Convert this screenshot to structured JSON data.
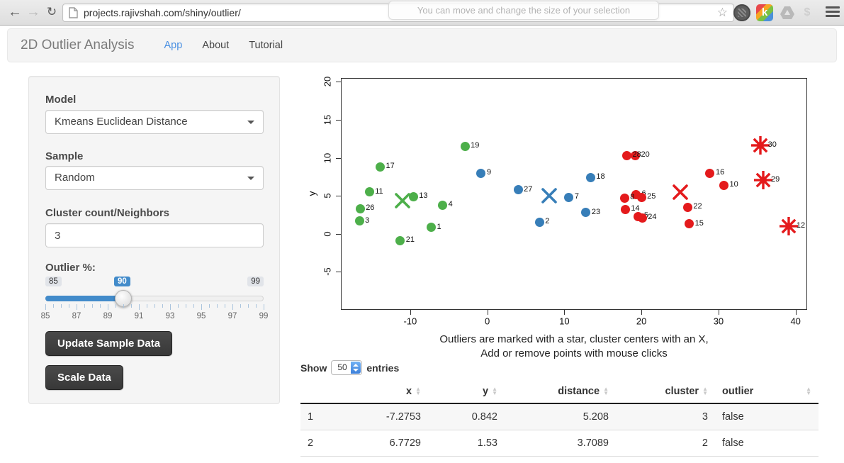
{
  "browser": {
    "url": "projects.rajivshah.com/shiny/outlier/",
    "tooltip": "You can move and change the size of your selection",
    "kami_label": "k",
    "dollar_label": "$"
  },
  "navbar": {
    "title": "2D Outlier Analysis",
    "items": [
      {
        "label": "App",
        "active": true
      },
      {
        "label": "About",
        "active": false
      },
      {
        "label": "Tutorial",
        "active": false
      }
    ]
  },
  "sidebar": {
    "model_label": "Model",
    "model_value": "Kmeans Euclidean Distance",
    "sample_label": "Sample",
    "sample_value": "Random",
    "cluster_label": "Cluster count/Neighbors",
    "cluster_value": "3",
    "slider": {
      "label": "Outlier %:",
      "min": 85,
      "max": 99,
      "value": 90,
      "tick_labels": [
        85,
        87,
        89,
        91,
        93,
        95,
        97,
        99
      ]
    },
    "buttons": [
      "Update Sample Data",
      "Scale Data"
    ]
  },
  "colors": {
    "accent": "#428bca",
    "nav_active": "#4a90e2",
    "green": "#4daf4a",
    "blue": "#377eb8",
    "red": "#e41a1c"
  },
  "chart_data": {
    "type": "scatter",
    "ylabel": "y",
    "xlabel_lines": [
      "Outliers are marked with a star, cluster centers with an X,",
      "Add or remove points with mouse clicks"
    ],
    "xlim": [
      -19,
      41.5
    ],
    "ylim": [
      -10,
      20.5
    ],
    "xticks": [
      -10,
      0,
      10,
      20,
      30,
      40
    ],
    "yticks": [
      -5,
      0,
      5,
      10,
      15,
      20
    ],
    "grid": false,
    "series": [
      {
        "name": "cluster-green",
        "marker": "circle",
        "color": "#4daf4a",
        "points": [
          {
            "id": 1,
            "x": -7.2753,
            "y": 0.842
          },
          {
            "id": 3,
            "x": -16.6,
            "y": 1.7
          },
          {
            "id": 4,
            "x": -5.8,
            "y": 3.8
          },
          {
            "id": 11,
            "x": -15.3,
            "y": 5.5
          },
          {
            "id": 13,
            "x": -9.6,
            "y": 4.9
          },
          {
            "id": 17,
            "x": -13.9,
            "y": 8.8
          },
          {
            "id": 19,
            "x": -2.9,
            "y": 11.5
          },
          {
            "id": 21,
            "x": -11.3,
            "y": -0.9
          },
          {
            "id": 26,
            "x": -16.5,
            "y": 3.3
          }
        ]
      },
      {
        "name": "cluster-blue",
        "marker": "circle",
        "color": "#377eb8",
        "points": [
          {
            "id": 2,
            "x": 6.7729,
            "y": 1.53
          },
          {
            "id": 7,
            "x": 10.6,
            "y": 4.8
          },
          {
            "id": 9,
            "x": -0.8,
            "y": 8.0
          },
          {
            "id": 18,
            "x": 13.4,
            "y": 7.4
          },
          {
            "id": 23,
            "x": 12.8,
            "y": 2.8
          },
          {
            "id": 27,
            "x": 4.0,
            "y": 5.8
          }
        ]
      },
      {
        "name": "cluster-red",
        "marker": "circle",
        "color": "#e41a1c",
        "points": [
          {
            "id": 5,
            "x": 19.6,
            "y": 2.3
          },
          {
            "id": 6,
            "x": 19.3,
            "y": 5.2
          },
          {
            "id": 8,
            "x": 17.8,
            "y": 4.7
          },
          {
            "id": 10,
            "x": 30.7,
            "y": 6.4
          },
          {
            "id": 14,
            "x": 17.9,
            "y": 3.2
          },
          {
            "id": 15,
            "x": 26.2,
            "y": 1.3
          },
          {
            "id": 16,
            "x": 28.9,
            "y": 8.0
          },
          {
            "id": 20,
            "x": 19.2,
            "y": 10.3
          },
          {
            "id": 22,
            "x": 26.0,
            "y": 3.5
          },
          {
            "id": 24,
            "x": 20.1,
            "y": 2.1
          },
          {
            "id": 25,
            "x": 20.0,
            "y": 4.8
          },
          {
            "id": 28,
            "x": 18.1,
            "y": 10.3
          }
        ]
      },
      {
        "name": "outliers-star",
        "marker": "star",
        "color": "#e41a1c",
        "points": [
          {
            "id": 12,
            "x": 39.1,
            "y": 1.0
          },
          {
            "id": 29,
            "x": 35.8,
            "y": 7.1
          },
          {
            "id": 30,
            "x": 35.4,
            "y": 11.6
          }
        ]
      },
      {
        "name": "cluster-centers",
        "marker": "x",
        "points": [
          {
            "x": -11.0,
            "y": 4.35,
            "color": "#4daf4a"
          },
          {
            "x": 8.0,
            "y": 5.0,
            "color": "#377eb8"
          },
          {
            "x": 25.0,
            "y": 5.45,
            "color": "#e41a1c"
          }
        ]
      }
    ]
  },
  "table": {
    "show_label": "Show",
    "entries_value": "50",
    "entries_label": "entries",
    "columns": [
      {
        "label": "",
        "align": "left",
        "sortable": false
      },
      {
        "label": "x",
        "align": "right",
        "sortable": true
      },
      {
        "label": "y",
        "align": "right",
        "sortable": true
      },
      {
        "label": "distance",
        "align": "right",
        "sortable": true
      },
      {
        "label": "cluster",
        "align": "right",
        "sortable": true
      },
      {
        "label": "outlier",
        "align": "left",
        "sortable": true
      }
    ],
    "rows": [
      [
        "1",
        "-7.2753",
        "0.842",
        "5.208",
        "3",
        "false"
      ],
      [
        "2",
        "6.7729",
        "1.53",
        "3.7089",
        "2",
        "false"
      ]
    ]
  }
}
